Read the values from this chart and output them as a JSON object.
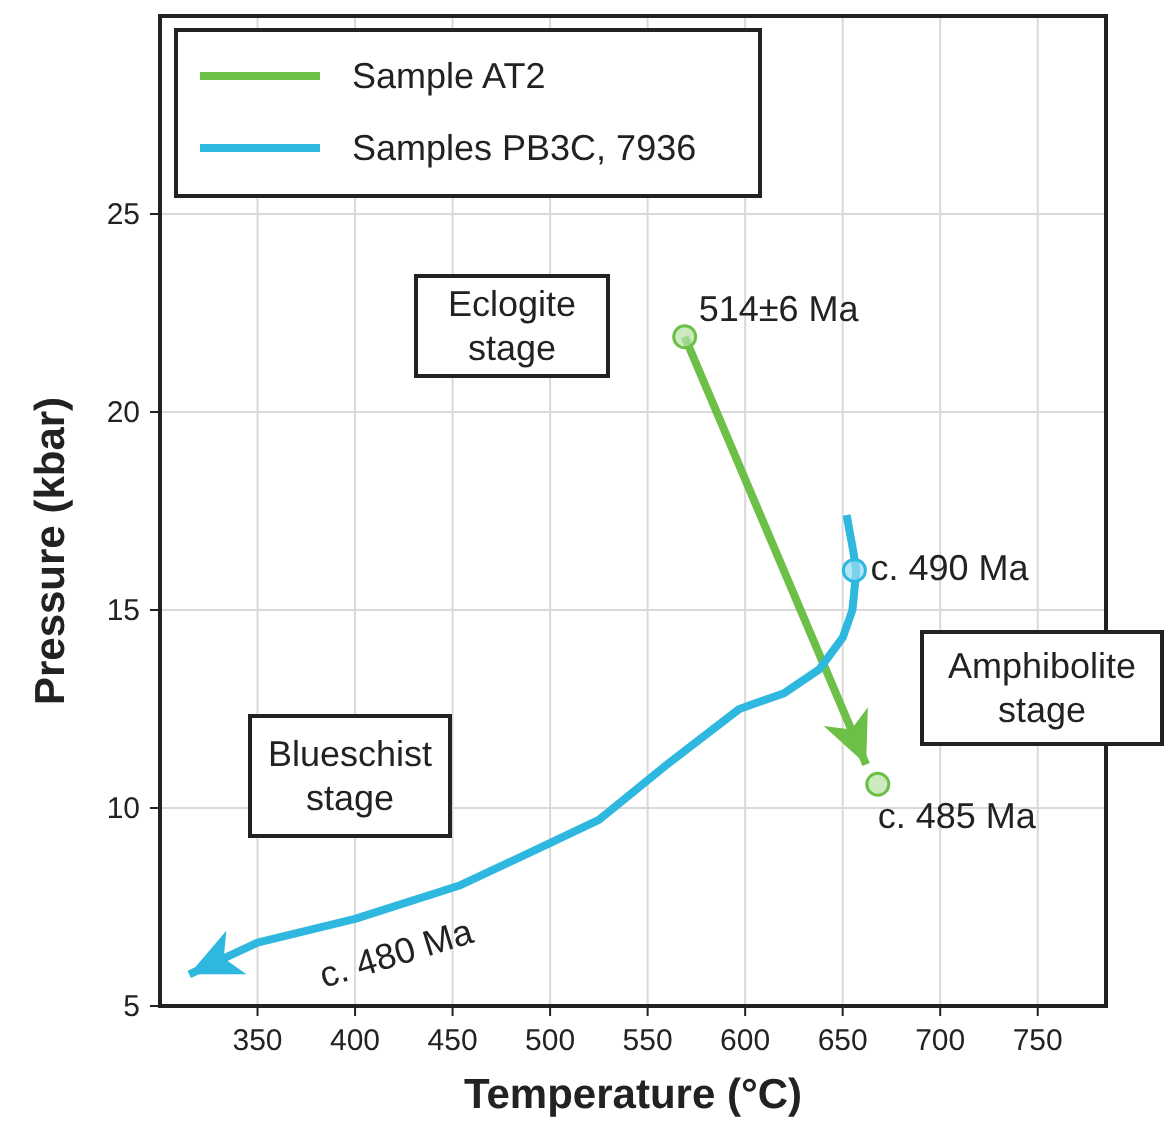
{
  "chart_data": {
    "type": "line",
    "xlabel": "Temperature (°C)",
    "ylabel": "Pressure (kbar)",
    "xlim": [
      300,
      785
    ],
    "ylim": [
      5,
      30
    ],
    "xticks": [
      350,
      400,
      450,
      500,
      550,
      600,
      650,
      700,
      750
    ],
    "yticks": [
      5,
      10,
      15,
      20,
      25
    ],
    "grid": true,
    "legend": "top left",
    "line_style": "solid",
    "series": [
      {
        "name": "Sample AT2",
        "color": "#6cbf47",
        "x": [
          569,
          662
        ],
        "values": [
          21.9,
          11.1
        ]
      },
      {
        "name": "Samples PB3C, 7936",
        "color": "#2fb8df",
        "x": [
          652,
          655,
          657,
          655,
          650,
          638,
          620,
          597,
          560,
          525,
          495,
          454,
          400,
          350,
          315
        ],
        "values": [
          17.4,
          16.6,
          16,
          15,
          14.3,
          13.5,
          12.9,
          12.5,
          11.1,
          9.7,
          9,
          8.05,
          7.2,
          6.6,
          5.8
        ]
      }
    ],
    "annotations": [
      {
        "text": "514±6 Ma",
        "x": 569,
        "y": 21.9
      },
      {
        "text": "c. 490 Ma",
        "x": 656,
        "y": 16
      },
      {
        "text": "c. 485 Ma",
        "x": 668,
        "y": 10.6
      },
      "c. 480 Ma",
      "Eclogite stage",
      "Amphibolite stage",
      "Blueschist stage"
    ]
  }
}
